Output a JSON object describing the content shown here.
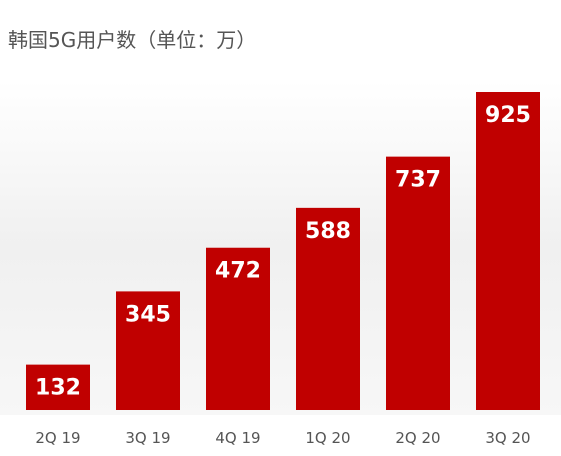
{
  "chart_data": {
    "type": "bar",
    "title": "韩国5G用户数（单位：万）",
    "categories": [
      "2Q 19",
      "3Q 19",
      "4Q 19",
      "1Q 20",
      "2Q 20",
      "3Q 20"
    ],
    "values": [
      132,
      345,
      472,
      588,
      737,
      925
    ],
    "color": "#c00000"
  }
}
